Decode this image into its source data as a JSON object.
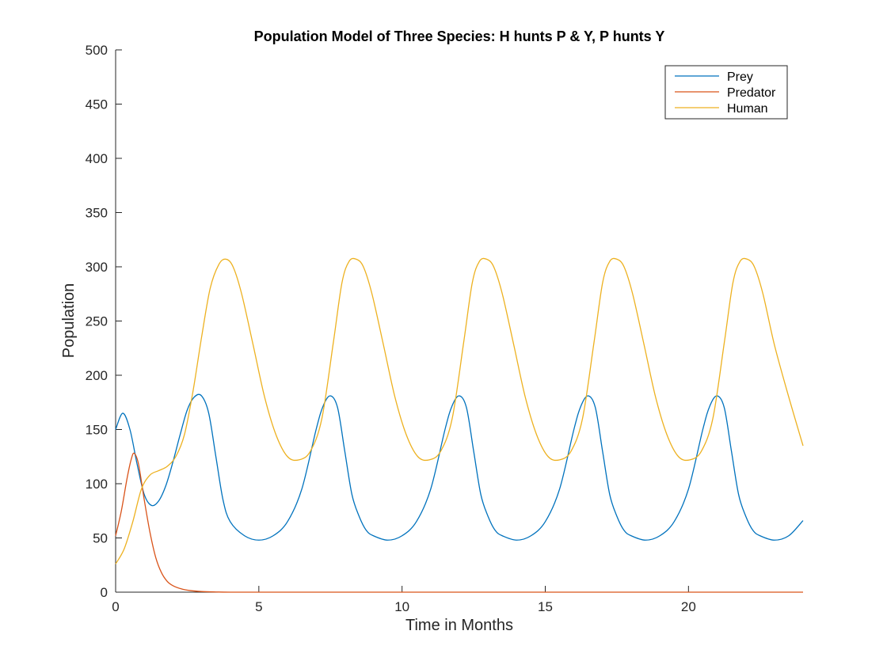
{
  "chart_data": {
    "type": "line",
    "title": "Population Model of Three Species: H hunts P & Y, P hunts Y",
    "xlabel": "Time in Months",
    "ylabel": "Population",
    "xlim": [
      0,
      24
    ],
    "ylim": [
      0,
      500
    ],
    "xticks": [
      0,
      5,
      10,
      15,
      20
    ],
    "yticks": [
      0,
      50,
      100,
      150,
      200,
      250,
      300,
      350,
      400,
      450,
      500
    ],
    "grid": false,
    "legend_position": "top-right",
    "series": [
      {
        "name": "Prey",
        "color": "#0072BD",
        "x": [
          0,
          0.25,
          0.5,
          0.75,
          1.0,
          1.25,
          1.5,
          1.75,
          2.0,
          2.25,
          2.5,
          2.75,
          3.0,
          3.25,
          3.5,
          3.75,
          4.0,
          4.5,
          5.0,
          5.5,
          6.0,
          6.5,
          7.0,
          7.25,
          7.5,
          7.75,
          8.0,
          8.25,
          8.5,
          8.75,
          9.0,
          9.5,
          10.0,
          10.5,
          11.0,
          11.5,
          11.75,
          12.0,
          12.25,
          12.5,
          12.75,
          13.0,
          13.25,
          13.5,
          14.0,
          14.5,
          15.0,
          15.5,
          16.0,
          16.25,
          16.5,
          16.75,
          17.0,
          17.25,
          17.5,
          17.75,
          18.0,
          18.5,
          19.0,
          19.5,
          20.0,
          20.5,
          20.75,
          21.0,
          21.25,
          21.5,
          21.75,
          22.0,
          22.25,
          22.5,
          23.0,
          23.5,
          24.0
        ],
        "values": [
          150,
          165,
          150,
          118,
          90,
          80,
          84,
          98,
          120,
          145,
          168,
          180,
          181,
          165,
          125,
          85,
          65,
          52,
          48,
          52,
          65,
          95,
          150,
          172,
          181,
          170,
          130,
          90,
          70,
          57,
          52,
          48,
          52,
          65,
          95,
          150,
          172,
          181,
          170,
          130,
          90,
          70,
          57,
          52,
          48,
          52,
          65,
          95,
          150,
          172,
          181,
          170,
          130,
          90,
          70,
          57,
          52,
          48,
          52,
          65,
          95,
          150,
          172,
          181,
          170,
          130,
          90,
          70,
          57,
          52,
          48,
          52,
          66
        ]
      },
      {
        "name": "Predator",
        "color": "#D95319",
        "x": [
          0,
          0.2,
          0.4,
          0.55,
          0.65,
          0.8,
          1.0,
          1.2,
          1.4,
          1.6,
          1.8,
          2.0,
          2.3,
          2.6,
          3.0,
          3.5,
          4.0,
          6.0,
          10.0,
          16.0,
          24.0
        ],
        "values": [
          52,
          75,
          105,
          123,
          128,
          118,
          85,
          55,
          32,
          18,
          10,
          6,
          3,
          1.5,
          0.6,
          0.2,
          0,
          0,
          0,
          0,
          0
        ]
      },
      {
        "name": "Human",
        "color": "#EDB120",
        "x": [
          0,
          0.3,
          0.6,
          0.9,
          1.2,
          1.5,
          1.8,
          2.1,
          2.4,
          2.7,
          3.0,
          3.3,
          3.6,
          3.85,
          4.1,
          4.4,
          4.8,
          5.2,
          5.6,
          6.0,
          6.4,
          6.8,
          7.2,
          7.6,
          7.9,
          8.15,
          8.4,
          8.65,
          8.95,
          9.35,
          9.75,
          10.15,
          10.55,
          10.95,
          11.35,
          11.75,
          12.15,
          12.45,
          12.7,
          12.95,
          13.2,
          13.5,
          13.9,
          14.3,
          14.7,
          15.1,
          15.5,
          15.9,
          16.3,
          16.7,
          17.0,
          17.25,
          17.5,
          17.75,
          18.05,
          18.45,
          18.85,
          19.25,
          19.65,
          20.05,
          20.45,
          20.85,
          21.25,
          21.55,
          21.8,
          22.05,
          22.3,
          22.6,
          23.0,
          23.5,
          24.0
        ],
        "values": [
          26,
          40,
          65,
          95,
          108,
          112,
          116,
          125,
          145,
          185,
          235,
          280,
          302,
          307,
          300,
          275,
          228,
          180,
          145,
          125,
          122,
          130,
          160,
          230,
          285,
          305,
          307,
          300,
          275,
          228,
          180,
          145,
          125,
          122,
          130,
          160,
          230,
          285,
          305,
          307,
          300,
          275,
          228,
          180,
          145,
          125,
          122,
          130,
          160,
          230,
          285,
          305,
          307,
          300,
          275,
          228,
          180,
          145,
          125,
          122,
          130,
          160,
          230,
          285,
          305,
          307,
          300,
          275,
          228,
          180,
          135
        ]
      }
    ]
  }
}
